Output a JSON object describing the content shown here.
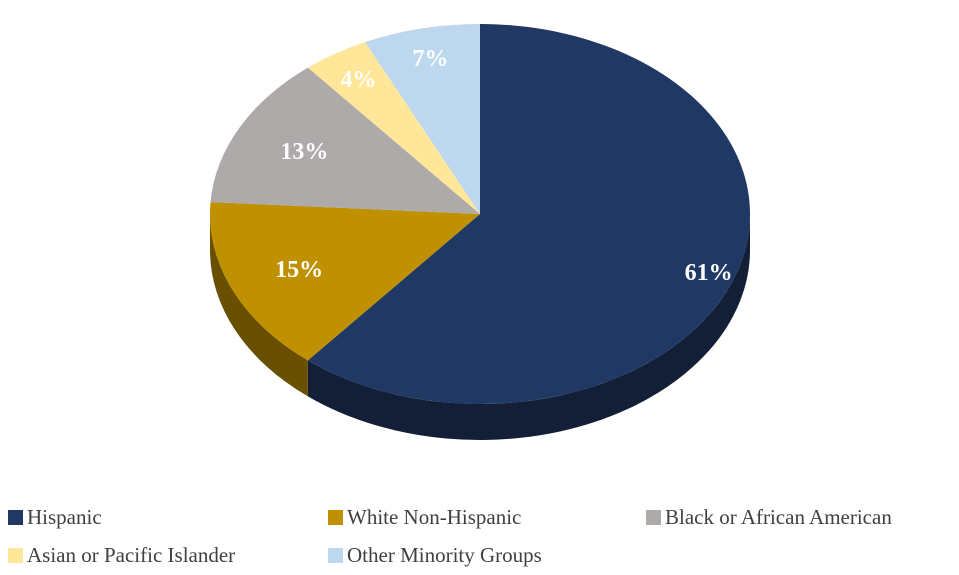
{
  "chart_data": {
    "type": "pie",
    "style": "3d",
    "categories": [
      "Hispanic",
      "White Non-Hispanic",
      "Black or African American",
      "Asian or Pacific Islander",
      "Other Minority Groups"
    ],
    "values": [
      61,
      15,
      13,
      4,
      7
    ],
    "labels": [
      "61%",
      "15%",
      "13%",
      "4%",
      "7%"
    ],
    "unit": "%",
    "colors": [
      "#203864",
      "#BF9000",
      "#AEAAAA",
      "#FFE699",
      "#BDD7EE"
    ],
    "legend_position": "bottom"
  }
}
